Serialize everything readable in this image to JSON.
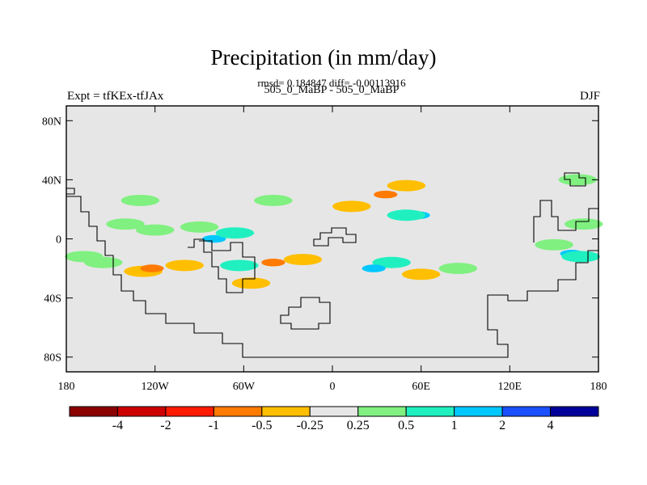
{
  "chart_data": {
    "type": "heatmap",
    "title": "Precipitation (in mm/day)",
    "stats_line": "rmsd= 0.184847 diff= -0.00113916",
    "left_label": "Expt = tfKEx-tfJAx",
    "center_label": "505_0_MaBP - 505_0_MaBP",
    "right_label": "DJF",
    "x_ticks": [
      "180",
      "120W",
      "60W",
      "0",
      "60E",
      "120E",
      "180"
    ],
    "x_tick_values": [
      -180,
      -120,
      -60,
      0,
      60,
      120,
      180
    ],
    "y_ticks": [
      "80N",
      "40N",
      "0",
      "40S",
      "80S"
    ],
    "y_tick_values": [
      80,
      40,
      0,
      -40,
      -80
    ],
    "xlim": [
      -180,
      180
    ],
    "ylim": [
      -90,
      90
    ],
    "background_color": "#e6e6e6",
    "colorbar": {
      "colors": [
        "#8b0000",
        "#cc0000",
        "#ff1a00",
        "#ff7a00",
        "#ffbe00",
        "#e6e6e6",
        "#80f080",
        "#20f0c0",
        "#00c8ff",
        "#1a50ff",
        "#00009a"
      ],
      "boundaries": [
        -4,
        -2,
        -1,
        -0.5,
        -0.25,
        0.25,
        0.5,
        1,
        2,
        4
      ],
      "labels": [
        "-4",
        "-2",
        "-1",
        "-0.5",
        "-0.25",
        "0.25",
        "0.5",
        "1",
        "2",
        "4"
      ]
    },
    "anomaly_blobs": [
      {
        "lon": -80,
        "lat": 36,
        "level": -0.25
      },
      {
        "lon": 20,
        "lat": 26,
        "level": -0.25
      },
      {
        "lon": 36,
        "lat": 30,
        "level": -1
      },
      {
        "lon": 50,
        "lat": 36,
        "level": -0.5
      },
      {
        "lon": -2,
        "lat": 22,
        "level": -0.25
      },
      {
        "lon": 13,
        "lat": 22,
        "level": -0.5
      },
      {
        "lon": 58,
        "lat": 16,
        "level": 1
      },
      {
        "lon": 50,
        "lat": 16,
        "level": 0.5
      },
      {
        "lon": -130,
        "lat": 26,
        "level": 0.25
      },
      {
        "lon": -40,
        "lat": 26,
        "level": 0.25
      },
      {
        "lon": -90,
        "lat": 8,
        "level": 0.25
      },
      {
        "lon": -80,
        "lat": 0,
        "level": 1
      },
      {
        "lon": -66,
        "lat": 4,
        "level": 0.5
      },
      {
        "lon": -140,
        "lat": 10,
        "level": 0.25
      },
      {
        "lon": -120,
        "lat": 6,
        "level": 0.25
      },
      {
        "lon": -128,
        "lat": -22,
        "level": -0.5
      },
      {
        "lon": -122,
        "lat": -20,
        "level": -1
      },
      {
        "lon": -100,
        "lat": -18,
        "level": -0.5
      },
      {
        "lon": -80,
        "lat": -12,
        "level": -0.25
      },
      {
        "lon": -63,
        "lat": -18,
        "level": 0.5
      },
      {
        "lon": -55,
        "lat": -30,
        "level": -0.5
      },
      {
        "lon": -155,
        "lat": -16,
        "level": 0.25
      },
      {
        "lon": -40,
        "lat": -16,
        "level": -1
      },
      {
        "lon": -20,
        "lat": -14,
        "level": -0.5
      },
      {
        "lon": 5,
        "lat": -12,
        "level": -0.25
      },
      {
        "lon": -30,
        "lat": -26,
        "level": -0.25
      },
      {
        "lon": 40,
        "lat": -16,
        "level": 0.5
      },
      {
        "lon": 28,
        "lat": -20,
        "level": 1
      },
      {
        "lon": 70,
        "lat": -22,
        "level": -0.25
      },
      {
        "lon": 60,
        "lat": -24,
        "level": -0.5
      },
      {
        "lon": 85,
        "lat": -20,
        "level": 0.25
      },
      {
        "lon": 150,
        "lat": -4,
        "level": 0.25
      },
      {
        "lon": 162,
        "lat": -10,
        "level": 1
      },
      {
        "lon": 168,
        "lat": -12,
        "level": 0.5
      },
      {
        "lon": 166,
        "lat": 40,
        "level": 0.25
      },
      {
        "lon": 170,
        "lat": 10,
        "level": 0.25
      },
      {
        "lon": -168,
        "lat": -12,
        "level": 0.25
      }
    ]
  }
}
